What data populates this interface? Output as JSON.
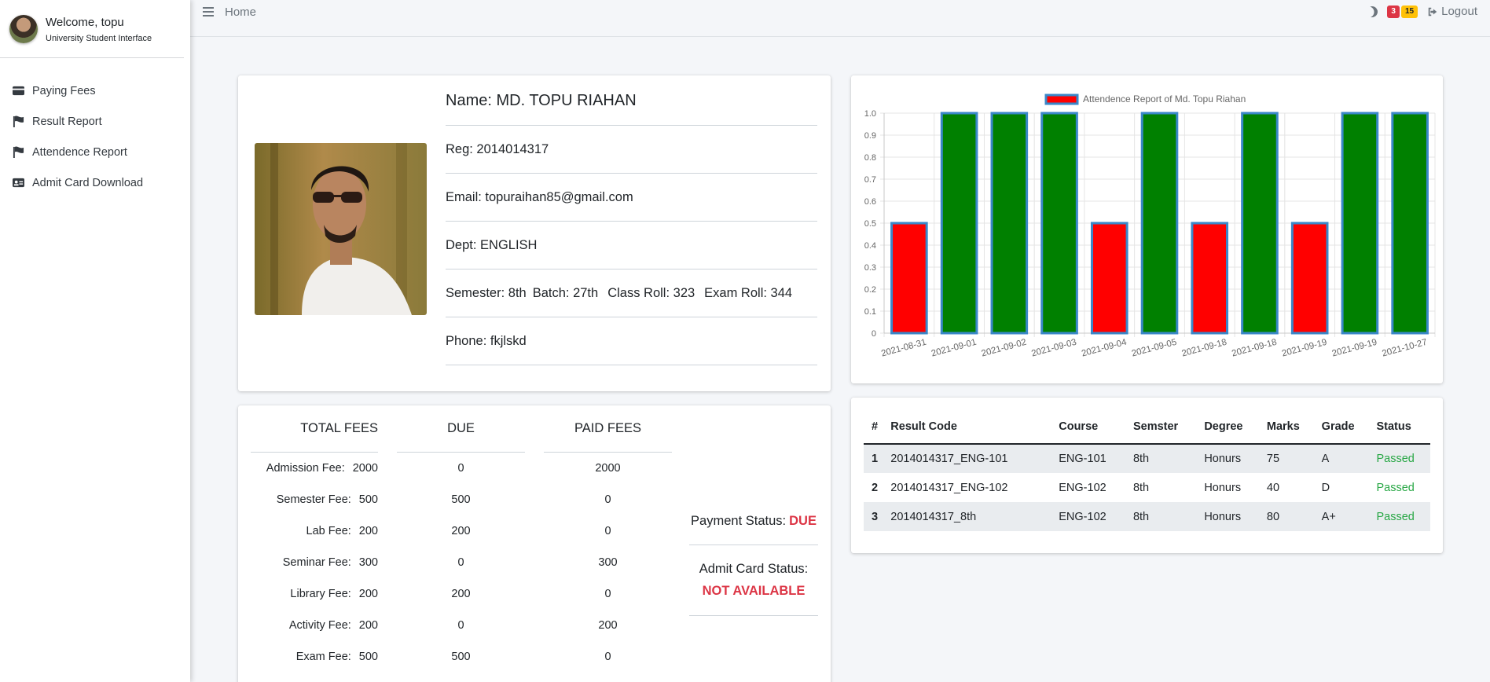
{
  "sidebar": {
    "welcome": "Welcome, topu",
    "subtitle": "University Student Interface",
    "items": [
      {
        "label": "Paying Fees",
        "icon": "credit-card-icon"
      },
      {
        "label": "Result Report",
        "icon": "flag-icon"
      },
      {
        "label": "Attendence Report",
        "icon": "flag-icon"
      },
      {
        "label": "Admit Card Download",
        "icon": "id-card-icon"
      }
    ]
  },
  "topbar": {
    "home": "Home",
    "badge_red": "3",
    "badge_yellow": "15",
    "logout": "Logout"
  },
  "profile": {
    "name": "Name: MD. TOPU RIAHAN",
    "reg": "Reg: 2014014317",
    "email": "Email: topuraihan85@gmail.com",
    "dept": "Dept: ENGLISH",
    "semester": "Semester: 8th",
    "batch": "Batch: 27th",
    "class_roll": "Class Roll: 323",
    "exam_roll": "Exam Roll: 344",
    "phone": "Phone: fkjlskd"
  },
  "fees": {
    "headers": {
      "total": "TOTAL FEES",
      "due": "DUE",
      "paid": "PAID FEES"
    },
    "rows": [
      {
        "label": "Admission Fee:",
        "total": "2000",
        "due": "0",
        "paid": "2000"
      },
      {
        "label": "Semester Fee:",
        "total": "500",
        "due": "500",
        "paid": "0"
      },
      {
        "label": "Lab Fee:",
        "total": "200",
        "due": "200",
        "paid": "0"
      },
      {
        "label": "Seminar Fee:",
        "total": "300",
        "due": "0",
        "paid": "300"
      },
      {
        "label": "Library Fee:",
        "total": "200",
        "due": "200",
        "paid": "0"
      },
      {
        "label": "Activity Fee:",
        "total": "200",
        "due": "0",
        "paid": "200"
      },
      {
        "label": "Exam Fee:",
        "total": "500",
        "due": "500",
        "paid": "0"
      }
    ],
    "payment_status_label": "Payment Status:",
    "payment_status_value": "DUE",
    "admit_status_label": "Admit Card Status:",
    "admit_status_value": "NOT AVAILABLE"
  },
  "chart_data": {
    "type": "bar",
    "legend": "Attendence Report of Md. Topu Riahan",
    "categories": [
      "2021-08-31",
      "2021-09-01",
      "2021-09-02",
      "2021-09-03",
      "2021-09-04",
      "2021-09-05",
      "2021-09-18",
      "2021-09-18",
      "2021-09-19",
      "2021-09-19",
      "2021-10-27"
    ],
    "values": [
      0.5,
      1,
      1,
      1,
      0.5,
      1,
      0.5,
      1,
      0.5,
      1,
      1
    ],
    "ylim": [
      0,
      1.0
    ],
    "yticks": [
      "0",
      "0.1",
      "0.2",
      "0.3",
      "0.4",
      "0.5",
      "0.6",
      "0.7",
      "0.8",
      "0.9",
      "1.0"
    ],
    "grid": true,
    "legend_position": "top",
    "colors": {
      "full": "#008000",
      "half": "#ff0000",
      "border": "#3a87c8"
    }
  },
  "results": {
    "headers": [
      "#",
      "Result Code",
      "Course",
      "Semster",
      "Degree",
      "Marks",
      "Grade",
      "Status"
    ],
    "rows": [
      [
        "1",
        "2014014317_ENG-101",
        "ENG-101",
        "8th",
        "Honurs",
        "75",
        "A",
        "Passed"
      ],
      [
        "2",
        "2014014317_ENG-102",
        "ENG-102",
        "8th",
        "Honurs",
        "40",
        "D",
        "Passed"
      ],
      [
        "3",
        "2014014317_8th",
        "ENG-102",
        "8th",
        "Honurs",
        "80",
        "A+",
        "Passed"
      ]
    ]
  }
}
